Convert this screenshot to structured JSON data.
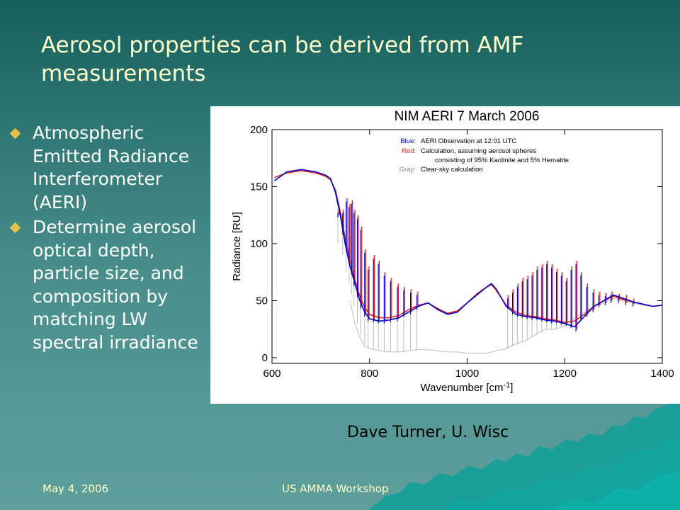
{
  "slide": {
    "title": "Aerosol properties can be derived from AMF measurements",
    "bullets": [
      {
        "lines": [
          "Atmospheric",
          "Emitted Radiance",
          "Interferometer",
          "(AERI)"
        ]
      },
      {
        "lines": [
          "Determine aerosol",
          "optical depth,",
          "particle size, and",
          "composition by",
          "matching LW",
          "spectral irradiance"
        ]
      }
    ],
    "credit": "Dave Turner, U. Wisc",
    "footer": {
      "date": "May 4, 2006",
      "event": "US AMMA Workshop"
    }
  },
  "colors": {
    "title_text": "#ffffcc",
    "bullet_marker": "#e6c24a",
    "blue_series": "#0000cc",
    "red_series": "#dd2222",
    "gray_series": "#bbbbbb"
  },
  "chart_data": {
    "type": "line",
    "title": "NIM AERI 7 March 2006",
    "xlabel": "Wavenumber [cm",
    "xlabel_sup": "-1",
    "xlabel_end": "]",
    "ylabel": "Radiance [RU]",
    "xlim": [
      600,
      1400
    ],
    "ylim": [
      -5,
      200
    ],
    "xticks": [
      600,
      800,
      1000,
      1200,
      1400
    ],
    "yticks": [
      0,
      50,
      100,
      150,
      200
    ],
    "legend": {
      "placement": "top-right",
      "entries": [
        {
          "key": "Blue:",
          "text": "AERI Observation at 12:01 UTC",
          "color": "#0000cc"
        },
        {
          "key": "Red:",
          "text": "Calculation, assuming aerosol spheres",
          "color": "#dd2222"
        },
        {
          "key": "",
          "text": "consisting of 95% Kaolinite and 5% Hematite",
          "color": "#000000"
        },
        {
          "key": "Gray:",
          "text": "Clear-sky calculation",
          "color": "#888888"
        }
      ]
    },
    "series": [
      {
        "color": "#0000cc",
        "x": [
          605,
          630,
          660,
          690,
          710,
          720,
          730,
          740,
          750,
          760,
          770,
          780,
          790,
          800,
          820,
          840,
          860,
          880,
          900,
          920,
          940,
          960,
          980,
          1000,
          1020,
          1040,
          1050,
          1060,
          1080,
          1100,
          1120,
          1140,
          1160,
          1180,
          1200,
          1220,
          1240,
          1260,
          1280,
          1300,
          1320,
          1340,
          1360,
          1380,
          1400
        ],
        "y": [
          155,
          163,
          165,
          163,
          160,
          157,
          145,
          125,
          100,
          80,
          65,
          50,
          40,
          34,
          32,
          33,
          35,
          40,
          45,
          48,
          42,
          38,
          40,
          48,
          55,
          62,
          65,
          60,
          45,
          38,
          36,
          35,
          33,
          32,
          30,
          27,
          36,
          45,
          50,
          55,
          52,
          49,
          47,
          45,
          46
        ]
      },
      {
        "color": "#dd2222",
        "x": [
          605,
          630,
          660,
          690,
          710,
          720,
          730,
          740,
          750,
          760,
          770,
          780,
          790,
          800,
          820,
          840,
          860,
          880,
          900,
          920,
          940,
          960,
          980,
          1000,
          1020,
          1040,
          1050,
          1060,
          1080,
          1100,
          1120,
          1140,
          1160,
          1180,
          1200,
          1220,
          1240,
          1260,
          1280,
          1300,
          1320,
          1340,
          1360,
          1380,
          1400
        ],
        "y": [
          158,
          162,
          164,
          162,
          159,
          156,
          147,
          128,
          105,
          85,
          68,
          54,
          44,
          38,
          35,
          35,
          37,
          42,
          46,
          48,
          43,
          39,
          41,
          48,
          56,
          62,
          64,
          59,
          46,
          40,
          37,
          36,
          34,
          33,
          31,
          32,
          38,
          45,
          50,
          54,
          51,
          49,
          47,
          45,
          46
        ]
      },
      {
        "color": "#bbbbbb",
        "x": [
          760,
          770,
          780,
          790,
          800,
          820,
          840,
          860,
          880,
          900,
          920,
          940,
          960,
          980,
          1000,
          1020,
          1040,
          1060,
          1080,
          1100,
          1120,
          1140,
          1160,
          1180,
          1200,
          1220,
          1240,
          1260,
          1280,
          1300,
          1320,
          1340,
          1360,
          1380,
          1400
        ],
        "y": [
          50,
          30,
          18,
          10,
          8,
          6,
          5,
          5,
          6,
          7,
          7,
          6,
          5,
          5,
          4,
          4,
          4,
          6,
          8,
          12,
          15,
          20,
          25,
          25,
          28,
          35,
          40,
          45,
          48,
          52,
          50,
          48,
          46,
          45,
          46
        ]
      }
    ],
    "absorption_lines": [
      {
        "x": 735,
        "top": 130,
        "gray_bottom": 100,
        "blue_bottom": 125
      },
      {
        "x": 745,
        "top": 130,
        "gray_bottom": 90,
        "blue_bottom": 110
      },
      {
        "x": 752,
        "top": 140,
        "gray_bottom": 75,
        "blue_bottom": 95
      },
      {
        "x": 758,
        "top": 135,
        "gray_bottom": 65,
        "blue_bottom": 85
      },
      {
        "x": 763,
        "top": 138,
        "gray_bottom": 55,
        "blue_bottom": 75
      },
      {
        "x": 768,
        "top": 130,
        "gray_bottom": 45,
        "blue_bottom": 65
      },
      {
        "x": 775,
        "top": 125,
        "gray_bottom": 30,
        "blue_bottom": 55
      },
      {
        "x": 782,
        "top": 115,
        "gray_bottom": 20,
        "blue_bottom": 45
      },
      {
        "x": 790,
        "top": 95,
        "gray_bottom": 12,
        "blue_bottom": 38
      },
      {
        "x": 797,
        "top": 80,
        "gray_bottom": 8,
        "blue_bottom": 34
      },
      {
        "x": 808,
        "top": 90,
        "gray_bottom": 7,
        "blue_bottom": 33
      },
      {
        "x": 818,
        "top": 85,
        "gray_bottom": 6,
        "blue_bottom": 32
      },
      {
        "x": 830,
        "top": 75,
        "gray_bottom": 5,
        "blue_bottom": 32
      },
      {
        "x": 843,
        "top": 70,
        "gray_bottom": 5,
        "blue_bottom": 33
      },
      {
        "x": 857,
        "top": 65,
        "gray_bottom": 5,
        "blue_bottom": 34
      },
      {
        "x": 870,
        "top": 62,
        "gray_bottom": 5,
        "blue_bottom": 38
      },
      {
        "x": 884,
        "top": 60,
        "gray_bottom": 6,
        "blue_bottom": 40
      },
      {
        "x": 897,
        "top": 58,
        "gray_bottom": 7,
        "blue_bottom": 44
      },
      {
        "x": 1083,
        "top": 55,
        "gray_bottom": 8,
        "blue_bottom": 45
      },
      {
        "x": 1093,
        "top": 60,
        "gray_bottom": 10,
        "blue_bottom": 40
      },
      {
        "x": 1103,
        "top": 65,
        "gray_bottom": 12,
        "blue_bottom": 38
      },
      {
        "x": 1113,
        "top": 70,
        "gray_bottom": 14,
        "blue_bottom": 37
      },
      {
        "x": 1123,
        "top": 72,
        "gray_bottom": 15,
        "blue_bottom": 36
      },
      {
        "x": 1133,
        "top": 75,
        "gray_bottom": 18,
        "blue_bottom": 35
      },
      {
        "x": 1143,
        "top": 80,
        "gray_bottom": 20,
        "blue_bottom": 35
      },
      {
        "x": 1153,
        "top": 82,
        "gray_bottom": 22,
        "blue_bottom": 34
      },
      {
        "x": 1163,
        "top": 85,
        "gray_bottom": 25,
        "blue_bottom": 33
      },
      {
        "x": 1173,
        "top": 82,
        "gray_bottom": 24,
        "blue_bottom": 32
      },
      {
        "x": 1183,
        "top": 78,
        "gray_bottom": 25,
        "blue_bottom": 32
      },
      {
        "x": 1193,
        "top": 75,
        "gray_bottom": 27,
        "blue_bottom": 31
      },
      {
        "x": 1203,
        "top": 70,
        "gray_bottom": 28,
        "blue_bottom": 30
      },
      {
        "x": 1213,
        "top": 80,
        "gray_bottom": 32,
        "blue_bottom": 28
      },
      {
        "x": 1223,
        "top": 85,
        "gray_bottom": 35,
        "blue_bottom": 25
      },
      {
        "x": 1233,
        "top": 75,
        "gray_bottom": 38,
        "blue_bottom": 34
      },
      {
        "x": 1245,
        "top": 65,
        "gray_bottom": 40,
        "blue_bottom": 38
      },
      {
        "x": 1258,
        "top": 60,
        "gray_bottom": 44,
        "blue_bottom": 42
      },
      {
        "x": 1270,
        "top": 58,
        "gray_bottom": 46,
        "blue_bottom": 46
      },
      {
        "x": 1283,
        "top": 57,
        "gray_bottom": 48,
        "blue_bottom": 48
      },
      {
        "x": 1295,
        "top": 58,
        "gray_bottom": 51,
        "blue_bottom": 50
      },
      {
        "x": 1310,
        "top": 56,
        "gray_bottom": 51,
        "blue_bottom": 50
      },
      {
        "x": 1325,
        "top": 55,
        "gray_bottom": 50,
        "blue_bottom": 48
      },
      {
        "x": 1340,
        "top": 52,
        "gray_bottom": 48,
        "blue_bottom": 47
      }
    ]
  }
}
